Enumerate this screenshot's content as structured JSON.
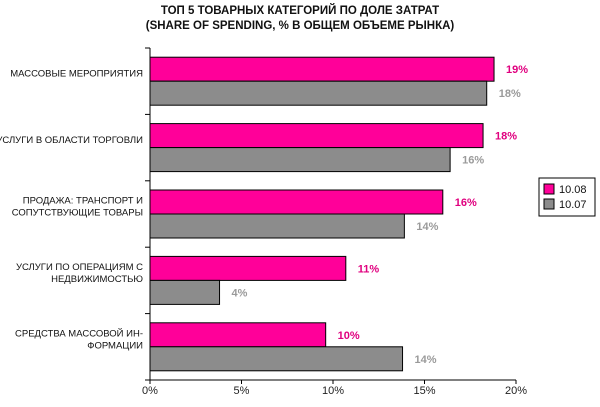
{
  "chart_data": {
    "type": "bar",
    "orientation": "horizontal",
    "title_lines": [
      "ТОП 5 ТОВАРНЫХ КАТЕГОРИЙ ПО ДОЛЕ ЗАТРАТ",
      "(SHARE OF SPENDING, % В ОБЩЕМ ОБЪЕМЕ РЫНКА)"
    ],
    "categories": [
      [
        "МАССОВЫЕ МЕРОПРИЯТИЯ"
      ],
      [
        "УСЛУГИ В ОБЛАСТИ ТОРГОВЛИ"
      ],
      [
        "ПРОДАЖА: ТРАНСПОРТ И",
        "СОПУТСТВУЮЩИЕ ТОВАРЫ"
      ],
      [
        "УСЛУГИ ПО ОПЕРАЦИЯМ С",
        "НЕДВИЖИМОСТЬЮ"
      ],
      [
        "СРЕДСТВА МАССОВОЙ ИН-",
        "ФОРМАЦИИ"
      ]
    ],
    "series": [
      {
        "name": "10.08",
        "color": "#ff0099",
        "label_color": "#e0007f",
        "values": [
          18.8,
          18.2,
          16.0,
          10.7,
          9.6
        ],
        "labels": [
          "19%",
          "18%",
          "16%",
          "11%",
          "10%"
        ]
      },
      {
        "name": "10.07",
        "color": "#8c8c8c",
        "label_color": "#9a9a9a",
        "values": [
          18.4,
          16.4,
          13.9,
          3.8,
          13.8
        ],
        "labels": [
          "18%",
          "16%",
          "14%",
          "4%",
          "14%"
        ]
      }
    ],
    "xlim": [
      0,
      20
    ],
    "xticks": [
      "0%",
      "5%",
      "10%",
      "15%",
      "20%"
    ],
    "legend_position": "right",
    "grid": false
  }
}
